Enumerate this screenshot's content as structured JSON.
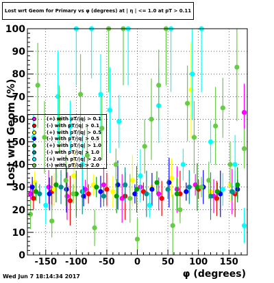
{
  "chart_data": {
    "type": "scatter",
    "title": "Lost wrt Geom for Primary vs φ (degrees) at | η | <= 1.0 at pT > 0.11",
    "xlabel": "φ (degrees)",
    "ylabel": "Lost wrt Geom (%)",
    "xlim": [
      -180,
      180
    ],
    "ylim": [
      0,
      100
    ],
    "x_ticks": [
      -150,
      -100,
      -50,
      0,
      50,
      100,
      150
    ],
    "y_ticks": [
      0,
      10,
      20,
      30,
      40,
      50,
      60,
      70,
      80,
      90,
      100
    ],
    "grid": true,
    "series": [
      {
        "label": "(+) with pT/|q| > 0.1",
        "color": "#ff00ff",
        "x": [
          -175,
          -145,
          -115,
          -85,
          -55,
          -25,
          5,
          35,
          65,
          95,
          125,
          155,
          175
        ],
        "y": [
          27,
          30,
          26,
          29,
          31,
          25,
          30,
          27,
          29,
          31,
          26,
          28,
          63
        ]
      },
      {
        "label": "(-) with pT/|q| > 0.1",
        "color": "#ff0000",
        "x": [
          -170,
          -140,
          -110,
          -80,
          -50,
          -20,
          10,
          40,
          70,
          100,
          130,
          160
        ],
        "y": [
          25,
          28,
          24,
          27,
          29,
          26,
          28,
          25,
          27,
          29,
          25,
          27
        ]
      },
      {
        "label": "(+) with pT/|q| > 0.5",
        "color": "#ffff00",
        "x": [
          -168,
          -136,
          -104,
          -72,
          -40,
          -8,
          24,
          56,
          88,
          120,
          152
        ],
        "y": [
          32,
          29,
          35,
          31,
          28,
          33,
          30,
          34,
          73,
          28,
          31
        ]
      },
      {
        "label": "(-) with pT/|q| > 0.5",
        "color": "#0000ff",
        "x": [
          -172,
          -144,
          -116,
          -88,
          -60,
          -32,
          -4,
          24,
          52,
          80,
          108,
          136,
          164
        ],
        "y": [
          30,
          27,
          29,
          26,
          28,
          31,
          27,
          29,
          32,
          28,
          30,
          27,
          29
        ]
      },
      {
        "label": "(+) with pT/|q| > 1.0",
        "color": "#00a000",
        "x": [
          -166,
          -133,
          -100,
          -67,
          -34,
          -1,
          32,
          65,
          98,
          131,
          164
        ],
        "y": [
          28,
          31,
          27,
          30,
          26,
          29,
          32,
          27,
          30,
          28,
          31
        ]
      },
      {
        "label": "(-) with pT/|q| > 1.0",
        "color": "#009090",
        "x": [
          -160,
          -125,
          -90,
          -55,
          -20,
          15,
          50,
          85,
          120,
          155
        ],
        "y": [
          27,
          30,
          28,
          26,
          31,
          27,
          29,
          30,
          26,
          28
        ]
      },
      {
        "label": "(+) with pT/|q| > 2.0",
        "color": "#00ffff",
        "x": [
          -170,
          -150,
          -130,
          -110,
          -100,
          -90,
          -75,
          -60,
          -45,
          -30,
          -15,
          5,
          20,
          35,
          55,
          75,
          90,
          105,
          120,
          140,
          160,
          175
        ],
        "y": [
          52,
          22,
          70,
          57,
          100,
          40,
          100,
          71,
          64,
          59,
          100,
          35,
          22,
          66,
          100,
          40,
          80,
          100,
          50,
          29,
          40,
          13
        ]
      },
      {
        "label": "(-) with pT/|q| > 2.0",
        "color": "#66cc44",
        "x": [
          -175,
          -163,
          -152,
          -140,
          -128,
          -117,
          -105,
          -93,
          -82,
          -70,
          -58,
          -47,
          -35,
          -23,
          -12,
          0,
          12,
          23,
          35,
          47,
          58,
          70,
          82,
          93,
          105,
          117,
          128,
          140,
          152,
          163,
          175
        ],
        "y": [
          18,
          75,
          52,
          15,
          60,
          33,
          27,
          71,
          44,
          12,
          56,
          100,
          40,
          100,
          25,
          7,
          48,
          60,
          75,
          100,
          13,
          20,
          67,
          52,
          30,
          33,
          57,
          65,
          40,
          83,
          47
        ]
      }
    ]
  },
  "timestamp": "Wed Jun  7 18:14:34 2017"
}
